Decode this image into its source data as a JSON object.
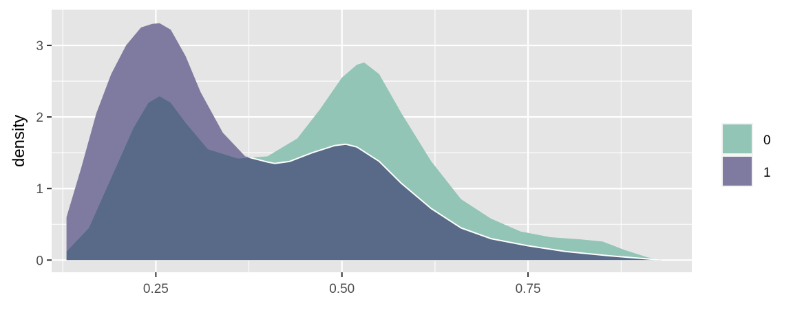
{
  "chart_data": {
    "type": "area",
    "subtype": "density",
    "title": "",
    "xlabel": "",
    "ylabel": "density",
    "xlim": [
      0.11,
      0.97
    ],
    "ylim": [
      -0.17,
      3.5
    ],
    "x_ticks": [
      0.25,
      0.5,
      0.75
    ],
    "x_tick_labels": [
      "0.25",
      "0.50",
      "0.75"
    ],
    "x_minor_gridlines": [
      0.125,
      0.375,
      0.625,
      0.875
    ],
    "y_ticks": [
      0,
      1,
      2,
      3
    ],
    "y_tick_labels": [
      "0",
      "1",
      "2",
      "3"
    ],
    "y_minor_gridlines": [
      0.5,
      1.5,
      2.5
    ],
    "grid": true,
    "legend": {
      "position": "right",
      "labels": [
        "0",
        "1"
      ]
    },
    "colors": {
      "panel_background": "#e5e5e5",
      "grid": "#ffffff",
      "series_0": "#92c5b6",
      "series_1": "#7f7ba0",
      "overlap": "#596988",
      "outline": "#ffffff"
    },
    "series": [
      {
        "name": "0",
        "color": "#92c5b6",
        "x": [
          0.13,
          0.16,
          0.19,
          0.22,
          0.24,
          0.255,
          0.27,
          0.29,
          0.32,
          0.36,
          0.4,
          0.44,
          0.47,
          0.5,
          0.52,
          0.53,
          0.55,
          0.58,
          0.62,
          0.66,
          0.7,
          0.74,
          0.78,
          0.82,
          0.85,
          0.88,
          0.91,
          0.93
        ],
        "y": [
          0.12,
          0.45,
          1.15,
          1.85,
          2.2,
          2.29,
          2.2,
          1.92,
          1.55,
          1.42,
          1.45,
          1.7,
          2.1,
          2.55,
          2.73,
          2.76,
          2.6,
          2.05,
          1.38,
          0.85,
          0.58,
          0.4,
          0.32,
          0.29,
          0.26,
          0.14,
          0.04,
          0.0
        ]
      },
      {
        "name": "1",
        "color": "#7f7ba0",
        "x": [
          0.13,
          0.15,
          0.17,
          0.19,
          0.21,
          0.23,
          0.245,
          0.255,
          0.27,
          0.29,
          0.31,
          0.34,
          0.37,
          0.4,
          0.41,
          0.43,
          0.46,
          0.49,
          0.505,
          0.52,
          0.55,
          0.58,
          0.62,
          0.66,
          0.7,
          0.75,
          0.8,
          0.86,
          0.93
        ],
        "y": [
          0.6,
          1.3,
          2.05,
          2.6,
          3.0,
          3.25,
          3.3,
          3.31,
          3.22,
          2.85,
          2.35,
          1.78,
          1.45,
          1.37,
          1.35,
          1.38,
          1.5,
          1.6,
          1.62,
          1.58,
          1.38,
          1.07,
          0.72,
          0.45,
          0.3,
          0.2,
          0.12,
          0.06,
          0.0
        ]
      }
    ]
  }
}
